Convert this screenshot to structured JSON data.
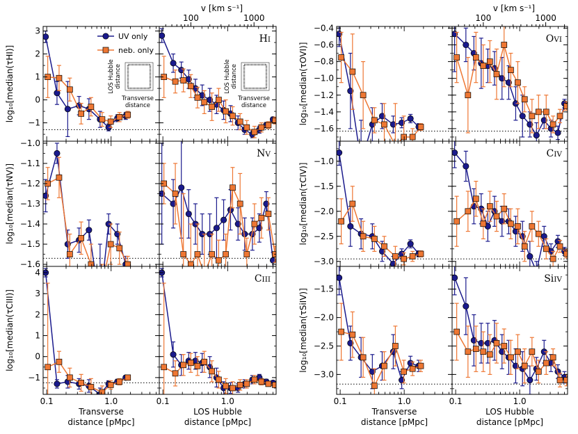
{
  "chart_data": {
    "type": "line",
    "legend": [
      {
        "name": "UV only",
        "color": "#1a1a8c",
        "marker": "circle"
      },
      {
        "name": "neb. only",
        "color": "#ee7733",
        "marker": "square"
      }
    ],
    "x_labels": {
      "transverse": [
        "Transverse",
        "distance [pMpc]"
      ],
      "los": [
        "LOS Hubble",
        "distance [pMpc]"
      ]
    },
    "top_axis": {
      "label": "v [km s⁻¹]",
      "ticks": [
        "100",
        "1000"
      ]
    },
    "x_ticks": [
      "0.1",
      "1.0"
    ],
    "inset": {
      "y_text": [
        "LOS Hubble",
        "distance"
      ],
      "x_text": [
        "Transverse",
        "distance"
      ]
    },
    "x_trans": [
      0.1,
      0.15,
      0.22,
      0.33,
      0.47,
      0.7,
      0.95,
      1.3,
      1.75
    ],
    "x_los": [
      0.1,
      0.15,
      0.2,
      0.26,
      0.33,
      0.42,
      0.55,
      0.7,
      0.9,
      1.15,
      1.5,
      1.9,
      2.5,
      3.2,
      4.1,
      5.2
    ],
    "panels": [
      {
        "ion": "HI",
        "ion_main": "H",
        "ion_roman": "I",
        "ylabel": "log₁₀[median(τHI)]",
        "ylim": [
          -1.8,
          3.2
        ],
        "yticks": [
          -1,
          0,
          1,
          2,
          3
        ],
        "tick_labels": [
          "−1",
          "0",
          "1",
          "2",
          "3"
        ],
        "baseline": -1.3,
        "show_top_axis": true,
        "show_legend": true,
        "show_inset": true,
        "uv_trans": [
          2.75,
          0.3,
          -0.4,
          -0.25,
          -0.4,
          -0.85,
          -1.2,
          -0.8,
          -0.7
        ],
        "uv_trans_err": [
          0.25,
          0.5,
          1.2,
          0.4,
          0.45,
          0.35,
          0.15,
          0.15,
          0.15
        ],
        "neb_trans": [
          1.0,
          0.95,
          0.45,
          -0.6,
          -0.3,
          -0.85,
          -0.95,
          -0.75,
          -0.65
        ],
        "neb_trans_err": [
          0.9,
          0.55,
          0.5,
          0.45,
          0.4,
          0.3,
          0.25,
          0.2,
          0.15
        ],
        "uv_los": [
          2.8,
          1.6,
          1.3,
          0.9,
          0.5,
          0.2,
          0.0,
          -0.2,
          -0.45,
          -0.6,
          -1.0,
          -1.3,
          -1.5,
          -1.3,
          -1.1,
          -0.85
        ],
        "uv_los_err": [
          0.3,
          0.4,
          0.35,
          0.4,
          0.4,
          0.45,
          0.5,
          0.4,
          0.4,
          0.35,
          0.3,
          0.2,
          0.15,
          0.15,
          0.12,
          0.1
        ],
        "neb_los": [
          1.0,
          0.8,
          0.85,
          0.6,
          0.1,
          -0.1,
          -0.3,
          0.0,
          -0.5,
          -0.7,
          -0.95,
          -1.2,
          -1.4,
          -1.2,
          -1.1,
          -0.9
        ],
        "neb_los_err": [
          0.9,
          0.5,
          0.5,
          0.5,
          0.45,
          0.5,
          0.6,
          0.5,
          0.5,
          0.4,
          0.35,
          0.3,
          0.25,
          0.2,
          0.15,
          0.15
        ]
      },
      {
        "ion": "OVI",
        "ion_main": "O",
        "ion_roman": "VI",
        "ylabel": "log₁₀[median(τOVI)]",
        "ylim": [
          -1.75,
          -0.38
        ],
        "yticks": [
          -1.6,
          -1.4,
          -1.2,
          -1.0,
          -0.8,
          -0.6,
          -0.4
        ],
        "tick_labels": [
          "−1.6",
          "−1.4",
          "−1.2",
          "−1.0",
          "−0.8",
          "−0.6",
          "−0.4"
        ],
        "baseline": -1.63,
        "show_top_axis": true,
        "show_legend": false,
        "show_inset": false,
        "uv_trans": [
          -0.47,
          -1.15,
          -2.0,
          -1.55,
          -1.45,
          -1.55,
          -1.53,
          -1.48,
          -1.58
        ],
        "uv_trans_err": [
          0.15,
          0.45,
          0.5,
          0.2,
          0.15,
          0.1,
          0.06,
          0.05,
          0.04
        ],
        "neb_trans": [
          -0.75,
          -0.92,
          -1.2,
          -1.5,
          -1.55,
          -1.8,
          -1.7,
          -1.7,
          -1.58
        ],
        "neb_trans_err": [
          0.3,
          0.45,
          0.4,
          0.15,
          0.25,
          0.5,
          0.25,
          0.1,
          0.04
        ],
        "uv_los": [
          -0.47,
          -0.6,
          -0.7,
          -0.82,
          -0.85,
          -0.88,
          -1.0,
          -1.05,
          -1.3,
          -1.45,
          -1.55,
          -1.68,
          -1.5,
          -1.6,
          -1.65,
          -1.3
        ],
        "uv_los_err": [
          0.45,
          0.2,
          0.2,
          0.3,
          0.2,
          0.2,
          0.25,
          0.2,
          0.2,
          0.25,
          0.15,
          0.15,
          0.1,
          0.1,
          0.08,
          0.05
        ],
        "neb_los": [
          -0.75,
          -1.2,
          -0.75,
          -0.85,
          -0.8,
          -0.95,
          -0.6,
          -0.9,
          -1.05,
          -1.25,
          -1.45,
          -1.4,
          -1.4,
          -1.55,
          -1.45,
          -1.33
        ],
        "neb_los_err": [
          0.3,
          0.45,
          0.3,
          0.25,
          0.25,
          0.3,
          0.5,
          0.2,
          0.25,
          0.15,
          0.2,
          0.2,
          0.2,
          0.1,
          0.08,
          0.05
        ]
      },
      {
        "ion": "NV",
        "ion_main": "N",
        "ion_roman": "V",
        "ylabel": "log₁₀[median(τNV)]",
        "ylim": [
          -1.61,
          -0.99
        ],
        "yticks": [
          -1.6,
          -1.5,
          -1.4,
          -1.3,
          -1.2,
          -1.1,
          -1.0
        ],
        "tick_labels": [
          "−1.6",
          "−1.5",
          "−1.4",
          "−1.3",
          "−1.2",
          "−1.1",
          "−1.0"
        ],
        "baseline": -1.57,
        "show_top_axis": false,
        "show_legend": false,
        "show_inset": false,
        "uv_trans": [
          -1.26,
          -1.05,
          -1.5,
          -1.48,
          -1.43,
          -1.8,
          -1.4,
          -1.45,
          -1.6
        ],
        "uv_trans_err": [
          0.08,
          0.05,
          0.07,
          0.06,
          0.05,
          0.3,
          0.05,
          0.05,
          0.04
        ],
        "neb_trans": [
          -1.2,
          -1.17,
          -1.55,
          -1.47,
          -1.6,
          -1.7,
          -1.5,
          -1.52,
          -1.6
        ],
        "neb_trans_err": [
          0.08,
          0.1,
          0.1,
          0.08,
          0.1,
          0.1,
          0.1,
          0.08,
          0.04
        ],
        "uv_los": [
          -1.25,
          -1.3,
          -1.22,
          -1.35,
          -1.4,
          -1.45,
          -1.45,
          -1.42,
          -1.38,
          -1.33,
          -1.4,
          -1.45,
          -1.45,
          -1.42,
          -1.3,
          -1.58
        ],
        "uv_los_err": [
          0.25,
          0.12,
          0.25,
          0.12,
          0.1,
          0.1,
          0.1,
          0.15,
          0.1,
          0.1,
          0.08,
          0.08,
          0.08,
          0.07,
          0.06,
          0.04
        ],
        "neb_los": [
          -1.2,
          -1.25,
          -1.55,
          -1.6,
          -1.55,
          -1.65,
          -1.55,
          -1.58,
          -1.55,
          -1.22,
          -1.3,
          -1.55,
          -1.4,
          -1.37,
          -1.35,
          -1.55
        ],
        "neb_los_err": [
          0.1,
          0.15,
          0.3,
          0.2,
          0.15,
          0.2,
          0.1,
          0.1,
          0.1,
          0.1,
          0.15,
          0.08,
          0.1,
          0.1,
          0.08,
          0.04
        ]
      },
      {
        "ion": "CIV",
        "ion_main": "C",
        "ion_roman": "IV",
        "ylabel": "log₁₀[median(τCIV)]",
        "ylim": [
          -3.1,
          -0.6
        ],
        "yticks": [
          -3.0,
          -2.5,
          -2.0,
          -1.5,
          -1.0
        ],
        "tick_labels": [
          "−3.0",
          "−2.5",
          "−2.0",
          "−1.5",
          "−1.0"
        ],
        "baseline": -2.95,
        "show_top_axis": false,
        "show_legend": false,
        "show_inset": false,
        "uv_trans": [
          -0.83,
          -2.3,
          -2.45,
          -2.5,
          -2.8,
          -3.05,
          -2.85,
          -2.65,
          -2.85
        ],
        "uv_trans_err": [
          0.25,
          0.4,
          0.3,
          0.25,
          0.2,
          0.15,
          0.1,
          0.08,
          0.06
        ],
        "neb_trans": [
          -2.2,
          -1.85,
          -2.5,
          -2.55,
          -2.7,
          -2.9,
          -2.95,
          -2.9,
          -2.85
        ],
        "neb_trans_err": [
          0.45,
          0.35,
          0.3,
          0.25,
          0.2,
          0.2,
          0.12,
          0.1,
          0.06
        ],
        "uv_los": [
          -0.83,
          -1.1,
          -1.9,
          -1.95,
          -2.3,
          -2.0,
          -2.2,
          -2.2,
          -2.4,
          -2.5,
          -2.9,
          -3.2,
          -2.5,
          -2.8,
          -2.6,
          -2.8
        ],
        "uv_los_err": [
          0.3,
          0.3,
          0.35,
          0.3,
          0.3,
          0.3,
          0.3,
          0.25,
          0.3,
          0.3,
          0.3,
          0.2,
          0.2,
          0.15,
          0.12,
          0.08
        ],
        "neb_los": [
          -2.2,
          -2.0,
          -1.75,
          -2.25,
          -1.9,
          -2.1,
          -1.95,
          -2.25,
          -2.3,
          -2.7,
          -2.3,
          -2.45,
          -2.75,
          -2.95,
          -2.7,
          -2.85
        ],
        "neb_los_err": [
          0.5,
          0.4,
          0.35,
          0.3,
          0.3,
          0.3,
          0.3,
          0.3,
          0.35,
          0.3,
          0.3,
          0.25,
          0.2,
          0.15,
          0.12,
          0.08
        ]
      },
      {
        "ion": "CIII",
        "ion_main": "C",
        "ion_roman": "III",
        "ylabel": "log₁₀[median(τCIII)]",
        "ylim": [
          -1.8,
          4.3
        ],
        "yticks": [
          -1,
          0,
          1,
          2,
          3,
          4
        ],
        "tick_labels": [
          "−1",
          "0",
          "1",
          "2",
          "3",
          "4"
        ],
        "baseline": -1.25,
        "show_top_axis": false,
        "show_legend": false,
        "show_inset": false,
        "uv_trans": [
          4.0,
          -1.3,
          -1.2,
          -1.3,
          -1.4,
          -1.8,
          -1.3,
          -1.2,
          -1.0
        ],
        "uv_trans_err": [
          0.2,
          0.2,
          0.3,
          0.25,
          0.3,
          0.3,
          0.15,
          0.12,
          0.08
        ],
        "neb_trans": [
          -0.5,
          -0.25,
          -1.0,
          -1.25,
          -1.45,
          -1.7,
          -1.35,
          -1.2,
          -1.0
        ],
        "neb_trans_err": [
          4.0,
          0.5,
          0.45,
          0.4,
          0.4,
          0.3,
          0.2,
          0.15,
          0.08
        ],
        "uv_los": [
          4.0,
          0.1,
          -0.4,
          -0.2,
          -0.2,
          -0.3,
          -0.5,
          -1.0,
          -1.5,
          -1.5,
          -1.5,
          -1.3,
          -1.1,
          -1.0,
          -1.2,
          -1.25
        ],
        "uv_los_err": [
          0.2,
          0.6,
          0.5,
          0.4,
          0.4,
          0.45,
          0.5,
          0.45,
          0.3,
          0.25,
          0.2,
          0.2,
          0.2,
          0.15,
          0.12,
          0.1
        ],
        "neb_los": [
          -0.5,
          -0.8,
          -0.4,
          -0.3,
          -0.45,
          -0.25,
          -0.7,
          -1.1,
          -1.4,
          -1.5,
          -1.35,
          -1.3,
          -1.1,
          -1.2,
          -1.3,
          -1.35
        ],
        "neb_los_err": [
          4.0,
          0.6,
          0.5,
          0.45,
          0.45,
          0.5,
          0.5,
          0.4,
          0.35,
          0.3,
          0.25,
          0.2,
          0.2,
          0.15,
          0.12,
          0.1
        ]
      },
      {
        "ion": "SiIV",
        "ion_main": "Si",
        "ion_roman": "IV",
        "ylabel": "log₁₀[median(τSiIV)]",
        "ylim": [
          -3.35,
          -1.1
        ],
        "yticks": [
          -3.0,
          -2.5,
          -2.0,
          -1.5
        ],
        "tick_labels": [
          "−3.0",
          "−2.5",
          "−2.0",
          "−1.5"
        ],
        "baseline": -3.17,
        "show_top_axis": false,
        "show_legend": false,
        "show_inset": false,
        "uv_trans": [
          -1.3,
          -2.45,
          -2.7,
          -2.95,
          -2.85,
          -2.6,
          -3.1,
          -2.8,
          -2.85
        ],
        "uv_trans_err": [
          0.3,
          0.3,
          0.35,
          0.3,
          0.25,
          0.3,
          0.15,
          0.12,
          0.1
        ],
        "neb_trans": [
          -2.25,
          -2.3,
          -2.7,
          -3.2,
          -2.85,
          -2.5,
          -2.95,
          -2.9,
          -2.85
        ],
        "neb_trans_err": [
          0.5,
          0.4,
          0.35,
          0.3,
          0.25,
          0.35,
          0.2,
          0.12,
          0.1
        ],
        "uv_los": [
          -1.3,
          -1.8,
          -2.4,
          -2.45,
          -2.45,
          -2.4,
          -2.6,
          -2.7,
          -2.85,
          -2.9,
          -3.1,
          -2.9,
          -2.6,
          -2.8,
          -2.95,
          -3.05
        ],
        "uv_los_err": [
          0.3,
          0.5,
          0.45,
          0.35,
          0.35,
          0.35,
          0.3,
          0.3,
          0.3,
          0.3,
          0.25,
          0.2,
          0.2,
          0.15,
          0.12,
          0.1
        ],
        "neb_los": [
          -2.25,
          -2.6,
          -2.55,
          -2.6,
          -2.65,
          -2.45,
          -2.5,
          -2.7,
          -2.6,
          -2.85,
          -2.6,
          -2.95,
          -2.8,
          -2.7,
          -3.1,
          -3.1
        ],
        "neb_los_err": [
          0.5,
          0.45,
          0.4,
          0.35,
          0.35,
          0.35,
          0.3,
          0.3,
          0.3,
          0.3,
          0.25,
          0.2,
          0.2,
          0.15,
          0.12,
          0.1
        ]
      }
    ]
  }
}
